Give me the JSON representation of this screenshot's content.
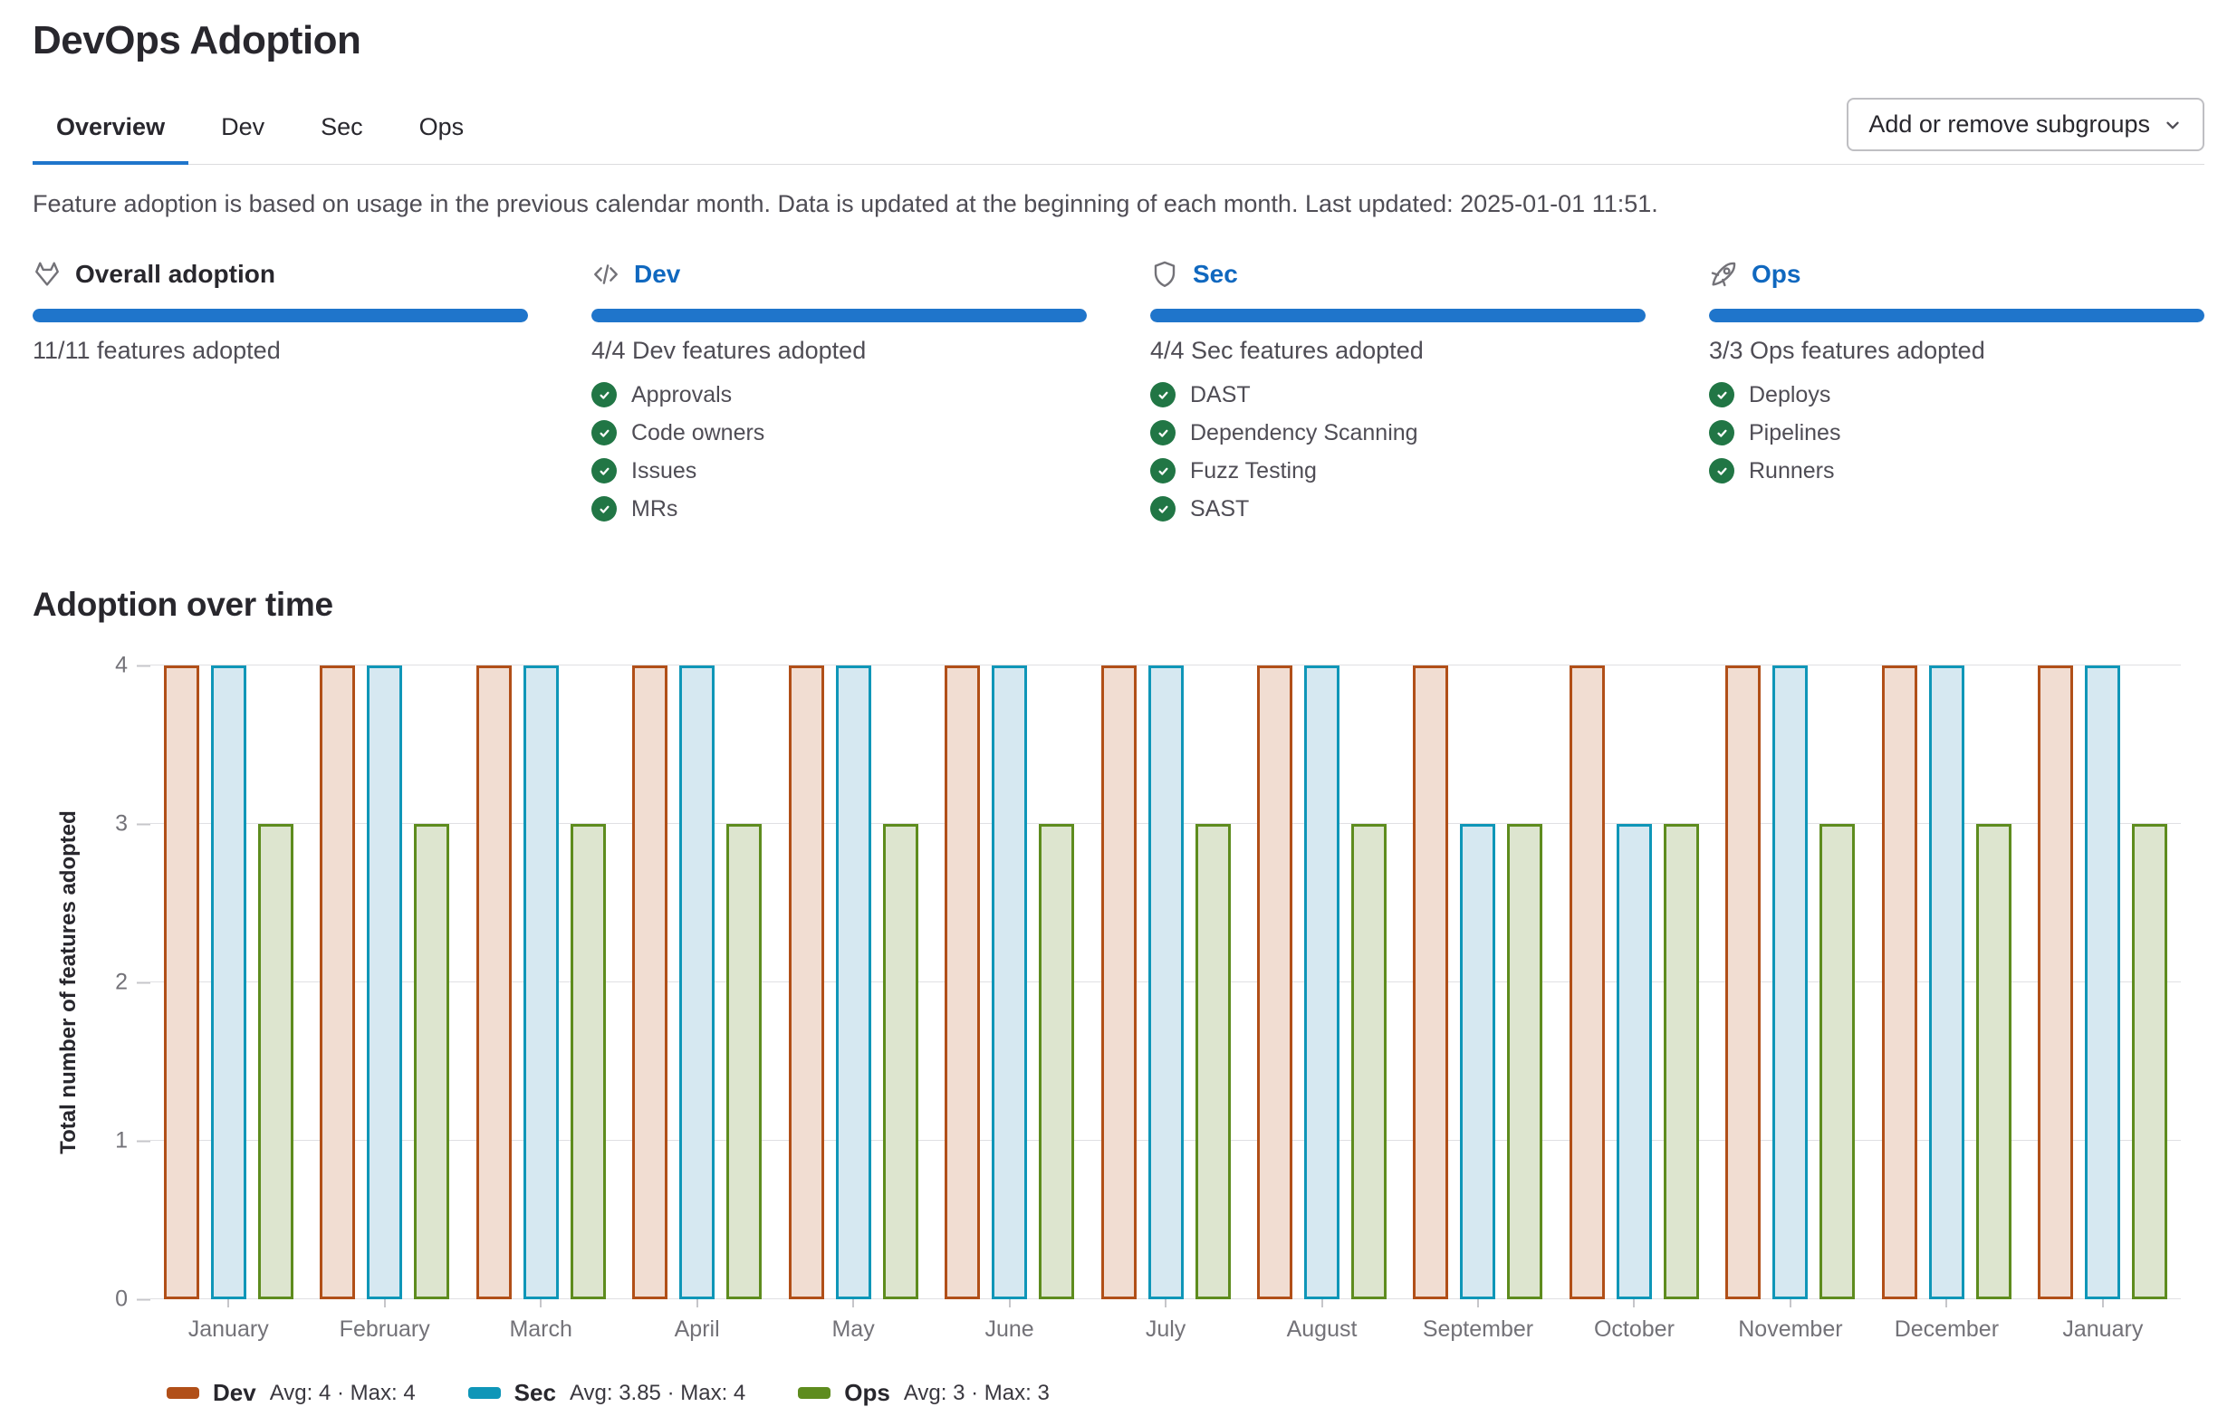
{
  "page": {
    "title": "DevOps Adoption"
  },
  "tabs": [
    {
      "label": "Overview",
      "active": true
    },
    {
      "label": "Dev",
      "active": false
    },
    {
      "label": "Sec",
      "active": false
    },
    {
      "label": "Ops",
      "active": false
    }
  ],
  "toolbar": {
    "add_remove_label": "Add or remove subgroups"
  },
  "description": "Feature adoption is based on usage in the previous calendar month. Data is updated at the beginning of each month. Last updated: 2025-01-01 11:51.",
  "cards": [
    {
      "icon": "tanuki-icon",
      "title": "Overall adoption",
      "is_link": false,
      "adopted": 11,
      "total": 11,
      "summary": "11/11 features adopted",
      "features": []
    },
    {
      "icon": "code-icon",
      "title": "Dev",
      "is_link": true,
      "adopted": 4,
      "total": 4,
      "summary": "4/4 Dev features adopted",
      "features": [
        "Approvals",
        "Code owners",
        "Issues",
        "MRs"
      ]
    },
    {
      "icon": "shield-icon",
      "title": "Sec",
      "is_link": true,
      "adopted": 4,
      "total": 4,
      "summary": "4/4 Sec features adopted",
      "features": [
        "DAST",
        "Dependency Scanning",
        "Fuzz Testing",
        "SAST"
      ]
    },
    {
      "icon": "rocket-icon",
      "title": "Ops",
      "is_link": true,
      "adopted": 3,
      "total": 3,
      "summary": "3/3 Ops features adopted",
      "features": [
        "Deploys",
        "Pipelines",
        "Runners"
      ]
    }
  ],
  "chart_section": {
    "title": "Adoption over time"
  },
  "chart_data": {
    "type": "bar",
    "title": "Adoption over time",
    "xlabel": "",
    "ylabel": "Total number of features adopted",
    "ylim": [
      0,
      4
    ],
    "yticks": [
      0,
      1,
      2,
      3,
      4
    ],
    "grid": true,
    "legend_position": "bottom",
    "categories": [
      "January",
      "February",
      "March",
      "April",
      "May",
      "June",
      "July",
      "August",
      "September",
      "October",
      "November",
      "December",
      "January"
    ],
    "series": [
      {
        "name": "Dev",
        "values": [
          4,
          4,
          4,
          4,
          4,
          4,
          4,
          4,
          4,
          4,
          4,
          4,
          4
        ],
        "legend_stats": "Avg: 4 · Max: 4",
        "stroke": "#b14f18",
        "fill": "#f1ddd2"
      },
      {
        "name": "Sec",
        "values": [
          4,
          4,
          4,
          4,
          4,
          4,
          4,
          4,
          3,
          3,
          4,
          4,
          4
        ],
        "legend_stats": "Avg: 3.85 · Max: 4",
        "stroke": "#0f96b8",
        "fill": "#d6e8f1"
      },
      {
        "name": "Ops",
        "values": [
          3,
          3,
          3,
          3,
          3,
          3,
          3,
          3,
          3,
          3,
          3,
          3,
          3
        ],
        "legend_stats": "Avg: 3 · Max: 3",
        "stroke": "#5e8c1e",
        "fill": "#dde5cf"
      }
    ]
  },
  "colors": {
    "accent_blue": "#1f75cb",
    "link_blue": "#1068bf",
    "check_green": "#217645"
  }
}
